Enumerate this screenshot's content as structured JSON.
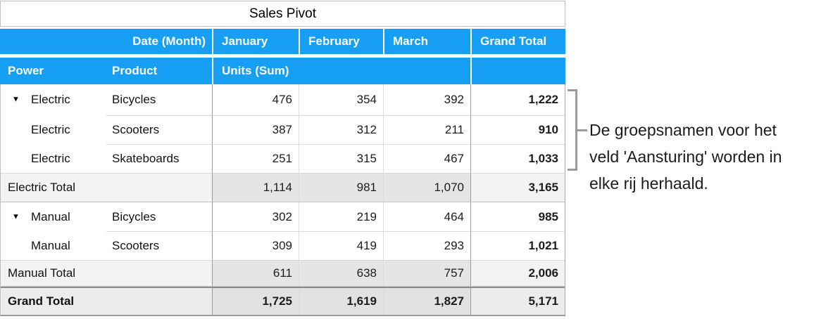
{
  "title": "Sales Pivot",
  "header": {
    "date_month_label": "Date (Month)",
    "months": [
      "January",
      "February",
      "March"
    ],
    "grand_total_label": "Grand Total",
    "power_label": "Power",
    "product_label": "Product",
    "units_label": "Units (Sum)"
  },
  "rows": [
    {
      "type": "data",
      "power": "Electric",
      "product": "Bicycles",
      "group_first": true,
      "values": [
        "476",
        "354",
        "392"
      ],
      "total": "1,222"
    },
    {
      "type": "data",
      "power": "Electric",
      "product": "Scooters",
      "group_first": false,
      "values": [
        "387",
        "312",
        "211"
      ],
      "total": "910"
    },
    {
      "type": "data",
      "power": "Electric",
      "product": "Skateboards",
      "group_first": false,
      "values": [
        "251",
        "315",
        "467"
      ],
      "total": "1,033"
    },
    {
      "type": "subtotal",
      "label": "Electric Total",
      "values": [
        "1,114",
        "981",
        "1,070"
      ],
      "total": "3,165"
    },
    {
      "type": "data",
      "power": "Manual",
      "product": "Bicycles",
      "group_first": true,
      "values": [
        "302",
        "219",
        "464"
      ],
      "total": "985"
    },
    {
      "type": "data",
      "power": "Manual",
      "product": "Scooters",
      "group_first": false,
      "values": [
        "309",
        "419",
        "293"
      ],
      "total": "1,021"
    },
    {
      "type": "subtotal",
      "label": "Manual Total",
      "values": [
        "611",
        "638",
        "757"
      ],
      "total": "2,006"
    },
    {
      "type": "grand",
      "label": "Grand Total",
      "values": [
        "1,725",
        "1,619",
        "1,827"
      ],
      "total": "5,171"
    }
  ],
  "annotation": {
    "lines": [
      "De groepsnamen voor het",
      "veld 'Aansturing' worden in",
      "elke rij herhaald."
    ]
  },
  "icons": {
    "disclosure": "▼"
  },
  "colors": {
    "header_blue": "#169FF3",
    "subtotal_bg": "#f3f3f4",
    "subtotal_month_bg": "#e5e5e7",
    "grand_bg": "#ececee",
    "grand_month_bg": "#e2e2e4",
    "border_light": "#d9d9d9",
    "border_dark": "#9a9a9a",
    "border_outer": "#c0c0c0",
    "bracket": "#9b9b9b"
  }
}
